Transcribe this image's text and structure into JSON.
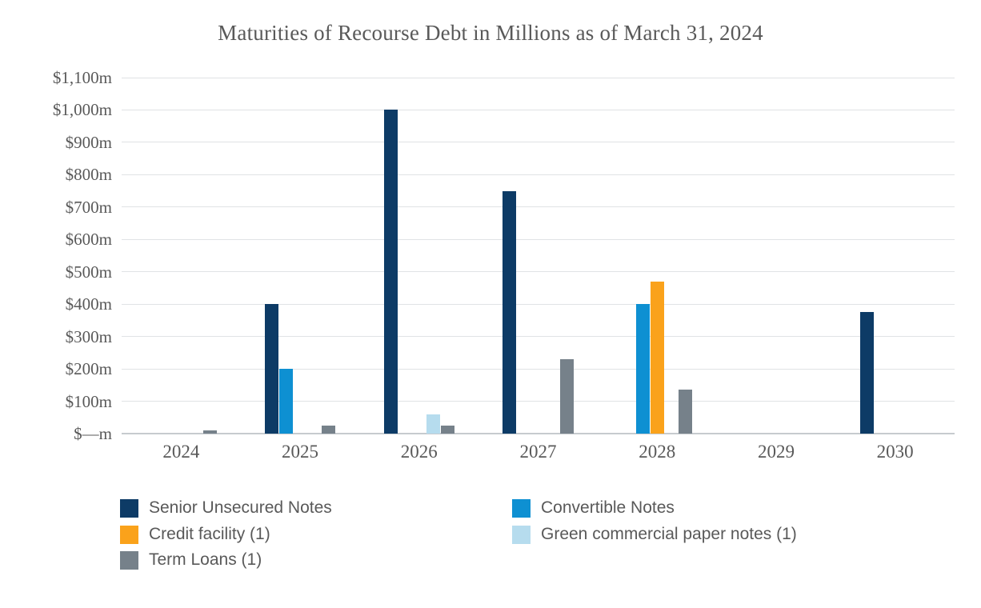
{
  "title": "Maturities of Recourse Debt in Millions as of March 31, 2024",
  "colors": {
    "text": "#595959",
    "gridline": "#e0e3e5",
    "axis_line": "#c6cbcf",
    "background": "#ffffff",
    "senior_unsecured_notes": "#0d3b66",
    "convertible_notes": "#0e90d2",
    "credit_facility": "#faa21b",
    "green_commercial_paper_notes": "#b6dcee",
    "term_loans": "#76818a"
  },
  "chart_data": {
    "type": "bar",
    "title": "Maturities of Recourse Debt in Millions as of March 31, 2024",
    "xlabel": "",
    "ylabel": "",
    "categories": [
      "2024",
      "2025",
      "2026",
      "2027",
      "2028",
      "2029",
      "2030"
    ],
    "series": [
      {
        "name": "Senior Unsecured Notes",
        "color": "#0d3b66",
        "values": [
          0,
          400,
          1000,
          750,
          0,
          0,
          375
        ]
      },
      {
        "name": "Convertible Notes",
        "color": "#0e90d2",
        "values": [
          0,
          200,
          0,
          0,
          400,
          0,
          0
        ]
      },
      {
        "name": "Credit facility (1)",
        "color": "#faa21b",
        "values": [
          0,
          0,
          0,
          0,
          470,
          0,
          0
        ]
      },
      {
        "name": "Green commercial paper notes (1)",
        "color": "#b6dcee",
        "values": [
          0,
          0,
          60,
          0,
          0,
          0,
          0
        ]
      },
      {
        "name": "Term Loans (1)",
        "color": "#76818a",
        "values": [
          10,
          25,
          25,
          230,
          135,
          0,
          0
        ]
      }
    ],
    "ylim": [
      0,
      1100
    ],
    "ytick_step": 100,
    "ytick_labels": [
      "$—m",
      "$100m",
      "$200m",
      "$300m",
      "$400m",
      "$500m",
      "$600m",
      "$700m",
      "$800m",
      "$900m",
      "$1,000m",
      "$1,100m"
    ],
    "grid": true,
    "legend_position": "bottom",
    "legend_columns": {
      "left": [
        "Senior Unsecured Notes",
        "Credit facility (1)",
        "Term Loans (1)"
      ],
      "right": [
        "Convertible Notes",
        "Green commercial paper notes (1)"
      ]
    }
  }
}
